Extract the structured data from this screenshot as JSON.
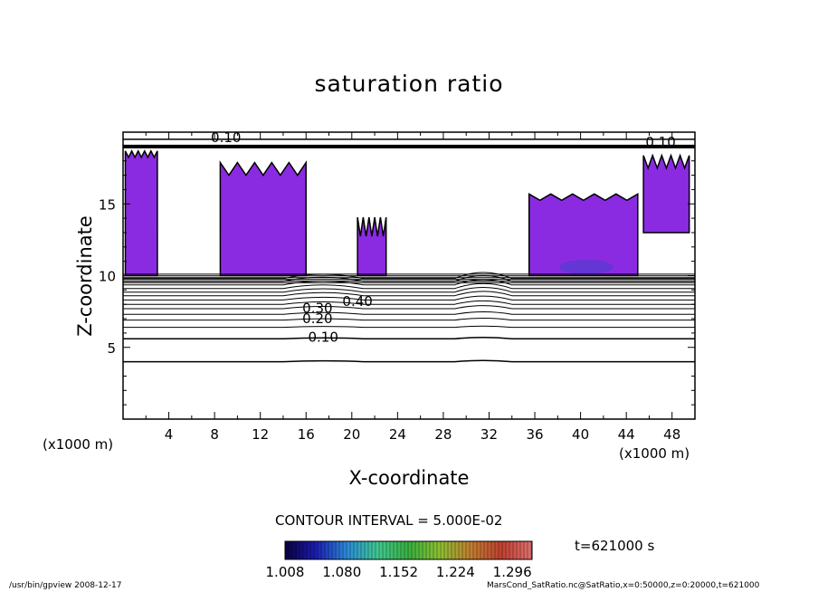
{
  "chart_data": {
    "type": "heatmap",
    "title": "saturation ratio",
    "xlabel": "X-coordinate",
    "ylabel": "Z-coordinate",
    "x_unit": "(x1000 m)",
    "xlim": [
      0,
      50
    ],
    "ylim": [
      0,
      20
    ],
    "x_ticks": [
      "4",
      "8",
      "12",
      "16",
      "20",
      "24",
      "28",
      "32",
      "36",
      "40",
      "44",
      "48"
    ],
    "y_ticks": [
      "5",
      "10",
      "15"
    ],
    "contour_interval_text": "CONTOUR INTERVAL = 5.000E-02",
    "contour_labels": [
      {
        "text": "0.10",
        "x": 17.5,
        "z": 5.4
      },
      {
        "text": "0.20",
        "x": 17.0,
        "z": 6.7
      },
      {
        "text": "0.30",
        "x": 17.0,
        "z": 7.4
      },
      {
        "text": "0.40",
        "x": 20.5,
        "z": 7.9
      },
      {
        "text": "0.10",
        "x": 9.0,
        "z": 19.3
      },
      {
        "text": "0.10",
        "x": 47.0,
        "z": 19.0
      }
    ],
    "shaded_regions": [
      {
        "x": [
          0.2,
          3.0
        ],
        "z": [
          10.0,
          18.5
        ]
      },
      {
        "x": [
          8.5,
          16.0
        ],
        "z": [
          10.0,
          17.5
        ]
      },
      {
        "x": [
          20.5,
          23.0
        ],
        "z": [
          10.0,
          13.5
        ]
      },
      {
        "x": [
          35.5,
          45.0
        ],
        "z": [
          10.0,
          15.5
        ]
      },
      {
        "x": [
          45.5,
          49.5
        ],
        "z": [
          13.0,
          18.0
        ]
      }
    ],
    "colorbar": {
      "labels": [
        "1.008",
        "1.080",
        "1.152",
        "1.224",
        "1.296"
      ],
      "colors": [
        "#0a0040",
        "#1c1cb0",
        "#2a8ad8",
        "#40c890",
        "#38b040",
        "#8cc030",
        "#c08030",
        "#c04030",
        "#e07070"
      ]
    },
    "time_label": "t=621000 s"
  },
  "colors": {
    "shade": "#8a2be2",
    "shade_core": "#5a3ad0"
  },
  "footer": {
    "left": "/usr/bin/gpview   2008-12-17",
    "right": "MarsCond_SatRatio.nc@SatRatio,x=0:50000,z=0:20000,t=621000"
  }
}
